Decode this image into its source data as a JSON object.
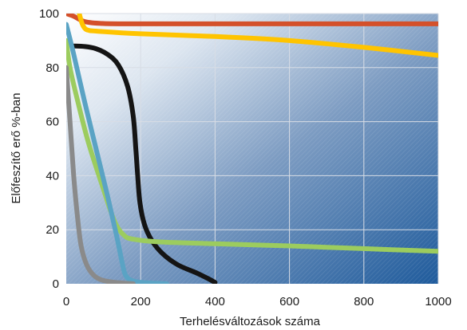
{
  "chart_data": {
    "type": "line",
    "xlabel": "Terhelésváltozások száma",
    "ylabel": "Előfeszítő erő %-ban",
    "xlim": [
      0,
      1000
    ],
    "ylim": [
      0,
      100
    ],
    "x_ticks": [
      0,
      200,
      400,
      600,
      800,
      1000
    ],
    "y_ticks": [
      0,
      20,
      40,
      60,
      80,
      100
    ],
    "x_tick_labels": [
      "0",
      "200",
      "400",
      "600",
      "800",
      "1000"
    ],
    "y_tick_labels": [
      "0",
      "20",
      "40",
      "60",
      "80",
      "100"
    ],
    "grid": true,
    "background": "blue gradient with diagonal hatching",
    "series": [
      {
        "color": "#d4502a",
        "width": 6,
        "points": [
          [
            0,
            100
          ],
          [
            20,
            99
          ],
          [
            50,
            97
          ],
          [
            100,
            96.3
          ],
          [
            200,
            96.2
          ],
          [
            400,
            96.2
          ],
          [
            600,
            96.2
          ],
          [
            800,
            96.2
          ],
          [
            1000,
            96.2
          ]
        ]
      },
      {
        "color": "#ffc400",
        "width": 6,
        "points": [
          [
            35,
            100
          ],
          [
            42,
            96.5
          ],
          [
            50,
            94.5
          ],
          [
            60,
            93.8
          ],
          [
            80,
            93.5
          ],
          [
            200,
            92.5
          ],
          [
            400,
            91.5
          ],
          [
            600,
            90
          ],
          [
            800,
            87.5
          ],
          [
            1000,
            84.5
          ]
        ]
      },
      {
        "color": "#141414",
        "width": 6,
        "points": [
          [
            20,
            88
          ],
          [
            50,
            87.8
          ],
          [
            80,
            87
          ],
          [
            110,
            85
          ],
          [
            140,
            81
          ],
          [
            165,
            73
          ],
          [
            180,
            62
          ],
          [
            187,
            50
          ],
          [
            192,
            40
          ],
          [
            198,
            30
          ],
          [
            210,
            22
          ],
          [
            230,
            16
          ],
          [
            260,
            11
          ],
          [
            300,
            7
          ],
          [
            350,
            4
          ],
          [
            380,
            2
          ],
          [
            400,
            0.5
          ]
        ]
      },
      {
        "color": "#9ccc5e",
        "width": 6,
        "points": [
          [
            0,
            90
          ],
          [
            10,
            80
          ],
          [
            30,
            68
          ],
          [
            60,
            52
          ],
          [
            100,
            35
          ],
          [
            130,
            23
          ],
          [
            155,
            18
          ],
          [
            180,
            16.5
          ],
          [
            250,
            15.5
          ],
          [
            400,
            14.8
          ],
          [
            600,
            14
          ],
          [
            800,
            13
          ],
          [
            1000,
            12
          ]
        ]
      },
      {
        "color": "#5aa3c4",
        "width": 6,
        "points": [
          [
            0,
            96
          ],
          [
            20,
            85
          ],
          [
            50,
            67
          ],
          [
            80,
            50
          ],
          [
            110,
            33
          ],
          [
            135,
            18
          ],
          [
            150,
            8
          ],
          [
            160,
            3
          ],
          [
            180,
            1
          ],
          [
            220,
            0.3
          ],
          [
            270,
            0
          ]
        ]
      },
      {
        "color": "#8a8a8a",
        "width": 6,
        "points": [
          [
            0,
            80
          ],
          [
            10,
            60
          ],
          [
            20,
            40
          ],
          [
            30,
            25
          ],
          [
            40,
            14
          ],
          [
            55,
            7
          ],
          [
            75,
            3
          ],
          [
            100,
            1.2
          ],
          [
            140,
            0.4
          ],
          [
            180,
            0
          ]
        ]
      }
    ]
  }
}
